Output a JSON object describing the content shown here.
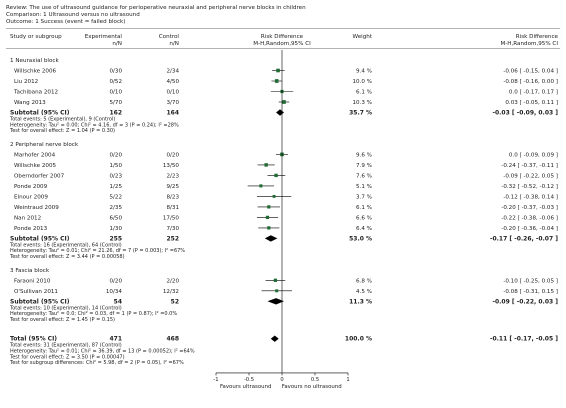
{
  "header": {
    "review": "Review:  The use of ultrasound guidance for perioperative neuraxial and peripheral nerve blocks in children",
    "comparison": "Comparison:  1 Ultrasound versus no ultrasound",
    "outcome": "Outcome:  1 Success (event = failed block)"
  },
  "columns": {
    "study": "Study or subgroup",
    "experimental": "Experimental",
    "experimental_sub": "n/N",
    "control": "Control",
    "control_sub": "n/N",
    "rd": "Risk Difference",
    "rd_sub": "M-H,Random,95% CI",
    "weight": "Weight",
    "rd2": "Risk Difference",
    "rd2_sub": "M-H,Random,95% CI"
  },
  "colors": {
    "marker": "#1f6b33",
    "diamond": "#000000",
    "text": "#222222"
  },
  "chart_data": {
    "type": "forest",
    "effect_measure": "Risk Difference, M-H, Random, 95% CI",
    "axis": {
      "ticks": [
        -1,
        -0.5,
        0,
        0.5,
        1
      ],
      "tick_labels": [
        "-1",
        "-0.5",
        "0",
        "0.5",
        "1"
      ],
      "left_label": "Favours ultrasound",
      "right_label": "Favours no ultrasound"
    },
    "subgroups": [
      {
        "title": "1 Neuraxial block",
        "studies": [
          {
            "name": "Willschke 2006",
            "exp": "0/30",
            "ctl": "2/34",
            "weight": "9.4 %",
            "ci_text": "-0.06 [ -0.15, 0.04 ]",
            "rd": -0.06,
            "lo": -0.15,
            "hi": 0.04,
            "w": 9.4
          },
          {
            "name": "Liu 2012",
            "exp": "0/52",
            "ctl": "4/50",
            "weight": "10.0 %",
            "ci_text": "-0.08 [ -0.16, 0.00 ]",
            "rd": -0.08,
            "lo": -0.16,
            "hi": 0.0,
            "w": 10.0
          },
          {
            "name": "Tachibana 2012",
            "exp": "0/10",
            "ctl": "0/10",
            "weight": "6.1 %",
            "ci_text": "0.0 [ -0.17, 0.17 ]",
            "rd": 0.0,
            "lo": -0.17,
            "hi": 0.17,
            "w": 6.1
          },
          {
            "name": "Wang 2013",
            "exp": "5/70",
            "ctl": "3/70",
            "weight": "10.3 %",
            "ci_text": "0.03 [ -0.05, 0.11 ]",
            "rd": 0.03,
            "lo": -0.05,
            "hi": 0.11,
            "w": 10.3
          }
        ],
        "subtotal": {
          "label": "Subtotal (95% CI)",
          "exp": "162",
          "ctl": "164",
          "weight": "35.7 %",
          "ci_text": "-0.03 [ -0.09, 0.03 ]",
          "rd": -0.03,
          "lo": -0.09,
          "hi": 0.03
        },
        "notes": [
          "Total events: 5 (Experimental), 9 (Control)",
          "Heterogeneity: Tau² = 0.00; Chi² = 4.16, df = 3 (P = 0.24); I² =28%",
          "Test for overall effect: Z = 1.04 (P = 0.30)"
        ]
      },
      {
        "title": "2 Peripheral nerve block",
        "studies": [
          {
            "name": "Marhofer 2004",
            "exp": "0/20",
            "ctl": "0/20",
            "weight": "9.6 %",
            "ci_text": "0.0 [ -0.09, 0.09 ]",
            "rd": 0.0,
            "lo": -0.09,
            "hi": 0.09,
            "w": 9.6
          },
          {
            "name": "Willschke 2005",
            "exp": "1/50",
            "ctl": "13/50",
            "weight": "7.9 %",
            "ci_text": "-0.24 [ -0.37, -0.11 ]",
            "rd": -0.24,
            "lo": -0.37,
            "hi": -0.11,
            "w": 7.9
          },
          {
            "name": "Oberndorfer 2007",
            "exp": "0/23",
            "ctl": "2/23",
            "weight": "7.6 %",
            "ci_text": "-0.09 [ -0.22, 0.05 ]",
            "rd": -0.09,
            "lo": -0.22,
            "hi": 0.05,
            "w": 7.6
          },
          {
            "name": "Ponde 2009",
            "exp": "1/25",
            "ctl": "9/25",
            "weight": "5.1 %",
            "ci_text": "-0.32 [ -0.52, -0.12 ]",
            "rd": -0.32,
            "lo": -0.52,
            "hi": -0.12,
            "w": 5.1
          },
          {
            "name": "Elnour 2009",
            "exp": "5/22",
            "ctl": "8/23",
            "weight": "3.7 %",
            "ci_text": "-0.12 [ -0.38, 0.14 ]",
            "rd": -0.12,
            "lo": -0.38,
            "hi": 0.14,
            "w": 3.7
          },
          {
            "name": "Weintraud 2009",
            "exp": "2/35",
            "ctl": "8/31",
            "weight": "6.1 %",
            "ci_text": "-0.20 [ -0.37, -0.03 ]",
            "rd": -0.2,
            "lo": -0.37,
            "hi": -0.03,
            "w": 6.1
          },
          {
            "name": "Nan 2012",
            "exp": "6/50",
            "ctl": "17/50",
            "weight": "6.6 %",
            "ci_text": "-0.22 [ -0.38, -0.06 ]",
            "rd": -0.22,
            "lo": -0.38,
            "hi": -0.06,
            "w": 6.6
          },
          {
            "name": "Ponde 2013",
            "exp": "1/30",
            "ctl": "7/30",
            "weight": "6.4 %",
            "ci_text": "-0.20 [ -0.36, -0.04 ]",
            "rd": -0.2,
            "lo": -0.36,
            "hi": -0.04,
            "w": 6.4
          }
        ],
        "subtotal": {
          "label": "Subtotal (95% CI)",
          "exp": "255",
          "ctl": "252",
          "weight": "53.0 %",
          "ci_text": "-0.17 [ -0.26, -0.07 ]",
          "rd": -0.17,
          "lo": -0.26,
          "hi": -0.07
        },
        "notes": [
          "Total events: 16 (Experimental), 64 (Control)",
          "Heterogeneity: Tau² = 0.01; Chi² = 21.26, df = 7 (P = 0.003); I² =67%",
          "Test for overall effect: Z = 3.44 (P = 0.00058)"
        ]
      },
      {
        "title": "3 Fascia block",
        "studies": [
          {
            "name": "Faraoni 2010",
            "exp": "0/20",
            "ctl": "2/20",
            "weight": "6.8 %",
            "ci_text": "-0.10 [ -0.25, 0.05 ]",
            "rd": -0.1,
            "lo": -0.25,
            "hi": 0.05,
            "w": 6.8
          },
          {
            "name": "O'Sullivan 2011",
            "exp": "10/34",
            "ctl": "12/32",
            "weight": "4.5 %",
            "ci_text": "-0.08 [ -0.31, 0.15 ]",
            "rd": -0.08,
            "lo": -0.31,
            "hi": 0.15,
            "w": 4.5
          }
        ],
        "subtotal": {
          "label": "Subtotal (95% CI)",
          "exp": "54",
          "ctl": "52",
          "weight": "11.3 %",
          "ci_text": "-0.09 [ -0.22, 0.03 ]",
          "rd": -0.09,
          "lo": -0.22,
          "hi": 0.03
        },
        "notes": [
          "Total events: 10 (Experimental), 14 (Control)",
          "Heterogeneity: Tau² = 0.0; Chi² = 0.03, df = 1 (P = 0.87); I² =0.0%",
          "Test for overall effect: Z = 1.45 (P = 0.15)"
        ]
      }
    ],
    "total": {
      "label": "Total (95% CI)",
      "exp": "471",
      "ctl": "468",
      "weight": "100.0 %",
      "ci_text": "-0.11 [ -0.17, -0.05 ]",
      "rd": -0.11,
      "lo": -0.17,
      "hi": -0.05,
      "notes": [
        "Total events: 31 (Experimental), 87 (Control)",
        "Heterogeneity: Tau² = 0.01; Chi² = 36.39, df = 13 (P = 0.00052); I² =64%",
        "Test for overall effect: Z = 3.50 (P = 0.00047)",
        "Test for subgroup differences: Chi² = 5.98, df = 2 (P = 0.05), I² =67%"
      ]
    }
  }
}
